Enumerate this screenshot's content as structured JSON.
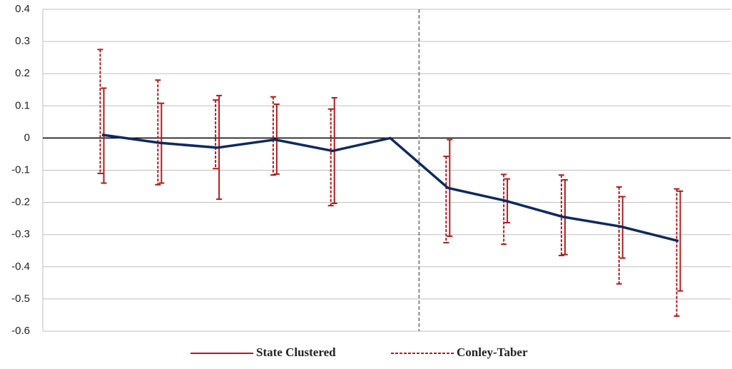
{
  "chart_data": {
    "type": "line",
    "categories": [
      null,
      null,
      null,
      null,
      null,
      null,
      null,
      null,
      null,
      null,
      null
    ],
    "values": [
      0.01,
      -0.015,
      -0.03,
      -0.005,
      -0.04,
      0,
      -0.155,
      -0.195,
      -0.245,
      -0.275,
      -0.32
    ],
    "color": "#0f2a5e",
    "series": [
      {
        "name": "State Clustered",
        "color": "#b01c1c",
        "dash": false,
        "low": [
          -0.14,
          -0.14,
          -0.19,
          -0.112,
          -0.203,
          null,
          -0.305,
          -0.263,
          -0.362,
          -0.373,
          -0.475
        ],
        "high": [
          0.155,
          0.108,
          0.132,
          0.105,
          0.125,
          null,
          -0.005,
          -0.127,
          -0.13,
          -0.182,
          -0.165
        ]
      },
      {
        "name": "Conley-Taber",
        "color": "#b01c1c",
        "dash": true,
        "low": [
          -0.11,
          -0.145,
          -0.095,
          -0.115,
          -0.21,
          null,
          -0.325,
          -0.33,
          -0.365,
          -0.453,
          -0.553
        ],
        "high": [
          0.275,
          0.18,
          0.118,
          0.128,
          0.09,
          null,
          -0.057,
          -0.113,
          -0.115,
          -0.152,
          -0.158
        ]
      }
    ],
    "ylim": [
      -0.6,
      0.4
    ],
    "yticks": [
      -0.6,
      -0.5,
      -0.4,
      -0.3,
      -0.2,
      -0.1,
      0,
      0.1,
      0.2,
      0.3,
      0.4
    ],
    "grid": true,
    "legend": "bottom"
  }
}
